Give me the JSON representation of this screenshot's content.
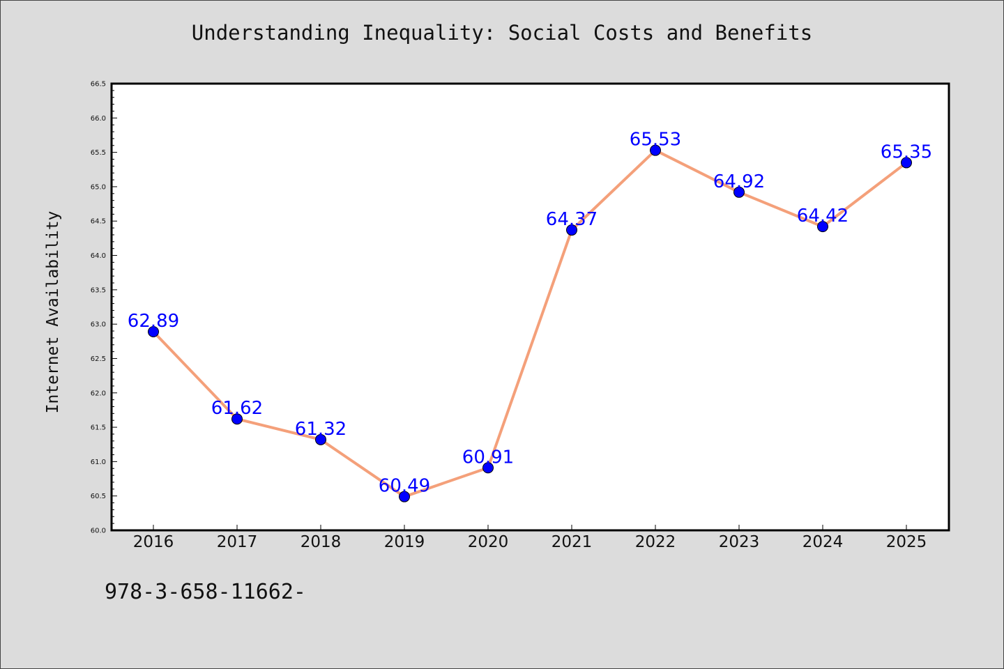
{
  "chart_data": {
    "type": "line",
    "title": "Understanding Inequality: Social Costs and Benefits",
    "xlabel": "",
    "ylabel": "Internet Availability",
    "categories": [
      "2016",
      "2017",
      "2018",
      "2019",
      "2020",
      "2021",
      "2022",
      "2023",
      "2024",
      "2025"
    ],
    "series": [
      {
        "values": [
          62.89,
          61.62,
          61.32,
          60.49,
          60.91,
          64.37,
          65.53,
          64.92,
          64.42,
          65.35
        ],
        "data_labels": [
          "62.89",
          "61.62",
          "61.32",
          "60.49",
          "60.91",
          "64.37",
          "65.53",
          "64.92",
          "64.42",
          "65.35"
        ]
      }
    ],
    "ylim": [
      60.0,
      66.5
    ],
    "yticks": [
      "60.0",
      "60.5",
      "61.0",
      "61.5",
      "62.0",
      "62.5",
      "63.0",
      "63.5",
      "64.0",
      "64.5",
      "65.0",
      "65.5",
      "66.0",
      "66.5"
    ],
    "grid": false,
    "legend": "none",
    "colors": {
      "line": "#f4a07a",
      "marker": "#0000ff",
      "label": "#0000ff",
      "background": "#dcdcdc",
      "plot_background": "#ffffff"
    }
  },
  "footnote": "978-3-658-11662-"
}
